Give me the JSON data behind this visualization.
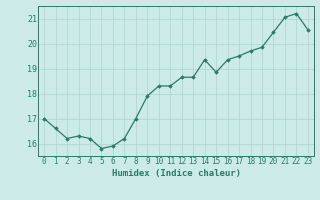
{
  "x": [
    0,
    1,
    2,
    3,
    4,
    5,
    6,
    7,
    8,
    9,
    10,
    11,
    12,
    13,
    14,
    15,
    16,
    17,
    18,
    19,
    20,
    21,
    22,
    23
  ],
  "y": [
    17.0,
    16.6,
    16.2,
    16.3,
    16.2,
    15.8,
    15.9,
    16.2,
    17.0,
    17.9,
    18.3,
    18.3,
    18.65,
    18.65,
    19.35,
    18.85,
    19.35,
    19.5,
    19.7,
    19.85,
    20.45,
    21.05,
    21.2,
    20.55
  ],
  "xlabel": "Humidex (Indice chaleur)",
  "xlim": [
    -0.5,
    23.5
  ],
  "ylim": [
    15.5,
    21.5
  ],
  "yticks": [
    16,
    17,
    18,
    19,
    20,
    21
  ],
  "xticks": [
    0,
    1,
    2,
    3,
    4,
    5,
    6,
    7,
    8,
    9,
    10,
    11,
    12,
    13,
    14,
    15,
    16,
    17,
    18,
    19,
    20,
    21,
    22,
    23
  ],
  "line_color": "#2a7a6a",
  "marker": "D",
  "marker_size": 1.8,
  "bg_color": "#cceae7",
  "grid_color": "#aad4cf",
  "axis_color": "#2a7a6a",
  "xlabel_fontsize": 6.5,
  "tick_fontsize": 5.5,
  "ytick_fontsize": 6.0,
  "linewidth": 0.9
}
